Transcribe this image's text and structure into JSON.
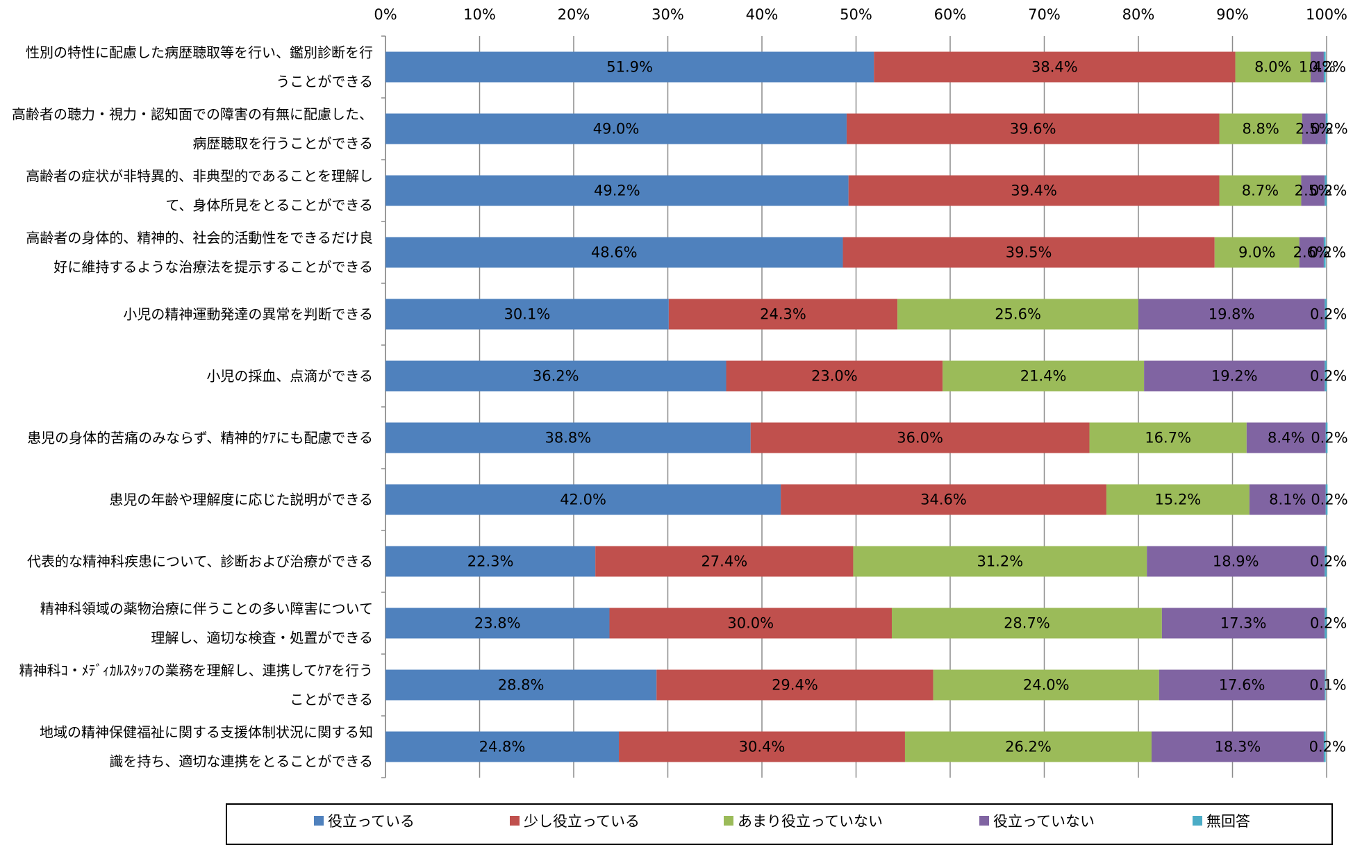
{
  "chart_data": {
    "type": "bar",
    "orientation": "horizontal",
    "stacked": true,
    "title": "",
    "xlabel": "",
    "ylabel": "",
    "xlim": [
      0,
      100
    ],
    "x_ticks": [
      "0%",
      "10%",
      "20%",
      "30%",
      "40%",
      "50%",
      "60%",
      "70%",
      "80%",
      "90%",
      "100%"
    ],
    "grid": "vertical",
    "legend_position": "bottom",
    "categories": [
      [
        "性別の特性に配慮した病歴聴取等を行い、鑑別診断を行",
        "うことができる"
      ],
      [
        "高齢者の聴力・視力・認知面での障害の有無に配慮した、",
        "病歴聴取を行うことができる"
      ],
      [
        "高齢者の症状が非特異的、非典型的であることを理解し",
        "て、身体所見をとることができる"
      ],
      [
        "高齢者の身体的、精神的、社会的活動性をできるだけ良",
        "好に維持するような治療法を提示することができる"
      ],
      [
        "小児の精神運動発達の異常を判断できる"
      ],
      [
        "小児の採血、点滴ができる"
      ],
      [
        "患児の身体的苦痛のみならず、精神的ｹｱにも配慮できる"
      ],
      [
        "患児の年齢や理解度に応じた説明ができる"
      ],
      [
        "代表的な精神科疾患について、診断および治療ができる"
      ],
      [
        "精神科領域の薬物治療に伴うことの多い障害について",
        "理解し、適切な検査・処置ができる"
      ],
      [
        "精神科ｺ・ﾒﾃﾞｨｶﾙｽﾀｯﾌの業務を理解し、連携してｹｱを行う",
        "ことができる"
      ],
      [
        "地域の精神保健福祉に関する支援体制状況に関する知",
        "識を持ち、適切な連携をとることができる"
      ]
    ],
    "series": [
      {
        "name": "役立っている",
        "color": "#4f81bd",
        "values": [
          51.9,
          49.0,
          49.2,
          48.6,
          30.1,
          36.2,
          38.8,
          42.0,
          22.3,
          23.8,
          28.8,
          24.8
        ]
      },
      {
        "name": "少し役立っている",
        "color": "#c0504d",
        "values": [
          38.4,
          39.6,
          39.4,
          39.5,
          24.3,
          23.0,
          36.0,
          34.6,
          27.4,
          30.0,
          29.4,
          30.4
        ]
      },
      {
        "name": "あまり役立っていない",
        "color": "#9bbb59",
        "values": [
          8.0,
          8.8,
          8.7,
          9.0,
          25.6,
          21.4,
          16.7,
          15.2,
          31.2,
          28.7,
          24.0,
          26.2
        ]
      },
      {
        "name": "役立っていない",
        "color": "#8064a2",
        "values": [
          1.4,
          2.5,
          2.5,
          2.6,
          19.8,
          19.2,
          8.4,
          8.1,
          18.9,
          17.3,
          17.6,
          18.3
        ]
      },
      {
        "name": "無回答",
        "color": "#4bacc6",
        "values": [
          0.2,
          0.2,
          0.2,
          0.2,
          0.2,
          0.2,
          0.2,
          0.2,
          0.2,
          0.2,
          0.1,
          0.2
        ]
      }
    ]
  }
}
